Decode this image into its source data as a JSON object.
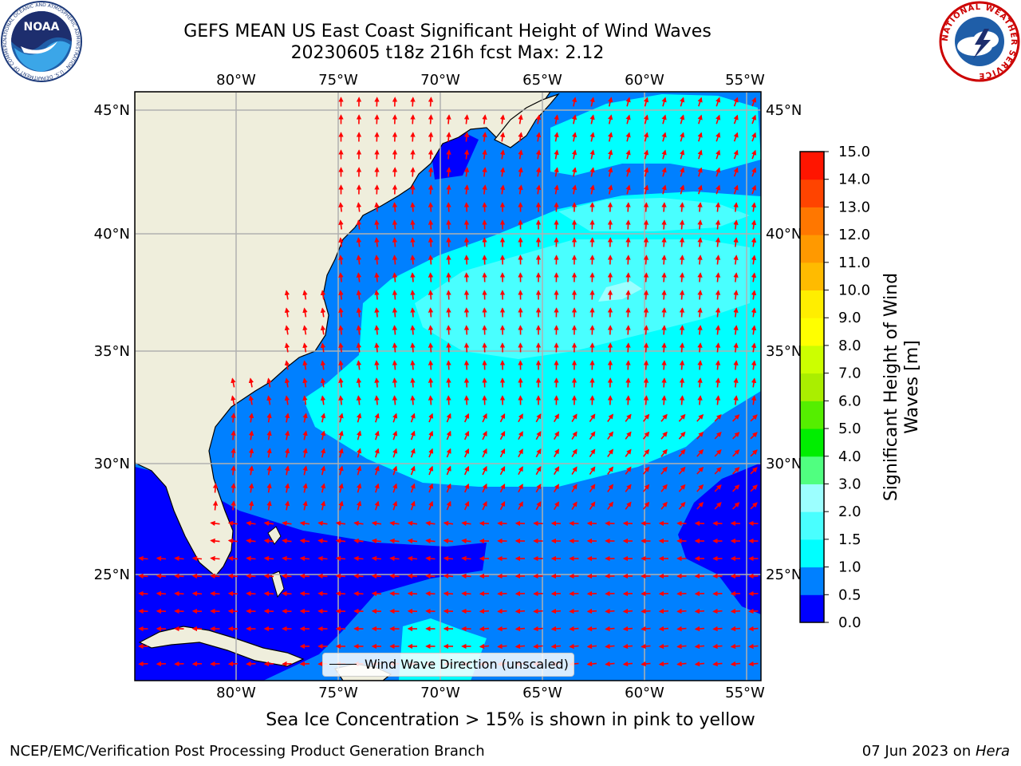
{
  "header": {
    "title_line1": "GEFS MEAN US East Coast Significant Height of Wind Waves",
    "title_line2": "20230605 t18z 216h fcst   Max: 2.12"
  },
  "logos": {
    "noaa_text": "NOAA",
    "noaa_ring_text": "NATIONAL OCEANIC AND ATMOSPHERIC ADMINISTRATION · U.S. DEPARTMENT OF COMMERCE",
    "nws_ring_text": "NATIONAL WEATHER SERVICE"
  },
  "map": {
    "lon_labels": [
      "80°W",
      "75°W",
      "70°W",
      "65°W",
      "60°W",
      "55°W"
    ],
    "lat_labels": [
      "45°N",
      "40°N",
      "35°N",
      "30°N",
      "25°N"
    ],
    "land_color": "#efeedc",
    "arrow_color": "#ff0000",
    "grid_color": "#b0b0b0",
    "legend_label": "Wind Wave Direction (unscaled)"
  },
  "colorbar": {
    "label_line1": "Significant Height of Wind",
    "label_line2": "Waves [m]",
    "ticks": [
      "0.0",
      "0.5",
      "1.0",
      "1.5",
      "2.0",
      "3.0",
      "4.0",
      "5.0",
      "6.0",
      "7.0",
      "8.0",
      "9.0",
      "10.0",
      "11.0",
      "12.0",
      "13.0",
      "14.0",
      "15.0"
    ],
    "colors": [
      "#0000ff",
      "#0080ff",
      "#00ffff",
      "#49ffff",
      "#9cffff",
      "#50ff80",
      "#00ee00",
      "#55ee00",
      "#aaee00",
      "#ccff00",
      "#ffff00",
      "#ffee00",
      "#ffbb00",
      "#ff9900",
      "#ff7700",
      "#ff4400",
      "#ff1500"
    ]
  },
  "subtitle": "Sea Ice Concentration > 15% is shown in pink to yellow",
  "footer": {
    "left": "NCEP/EMC/Verification Post Processing Product Generation Branch",
    "right_date": "07 Jun 2023 on ",
    "right_machine": "Hera"
  }
}
